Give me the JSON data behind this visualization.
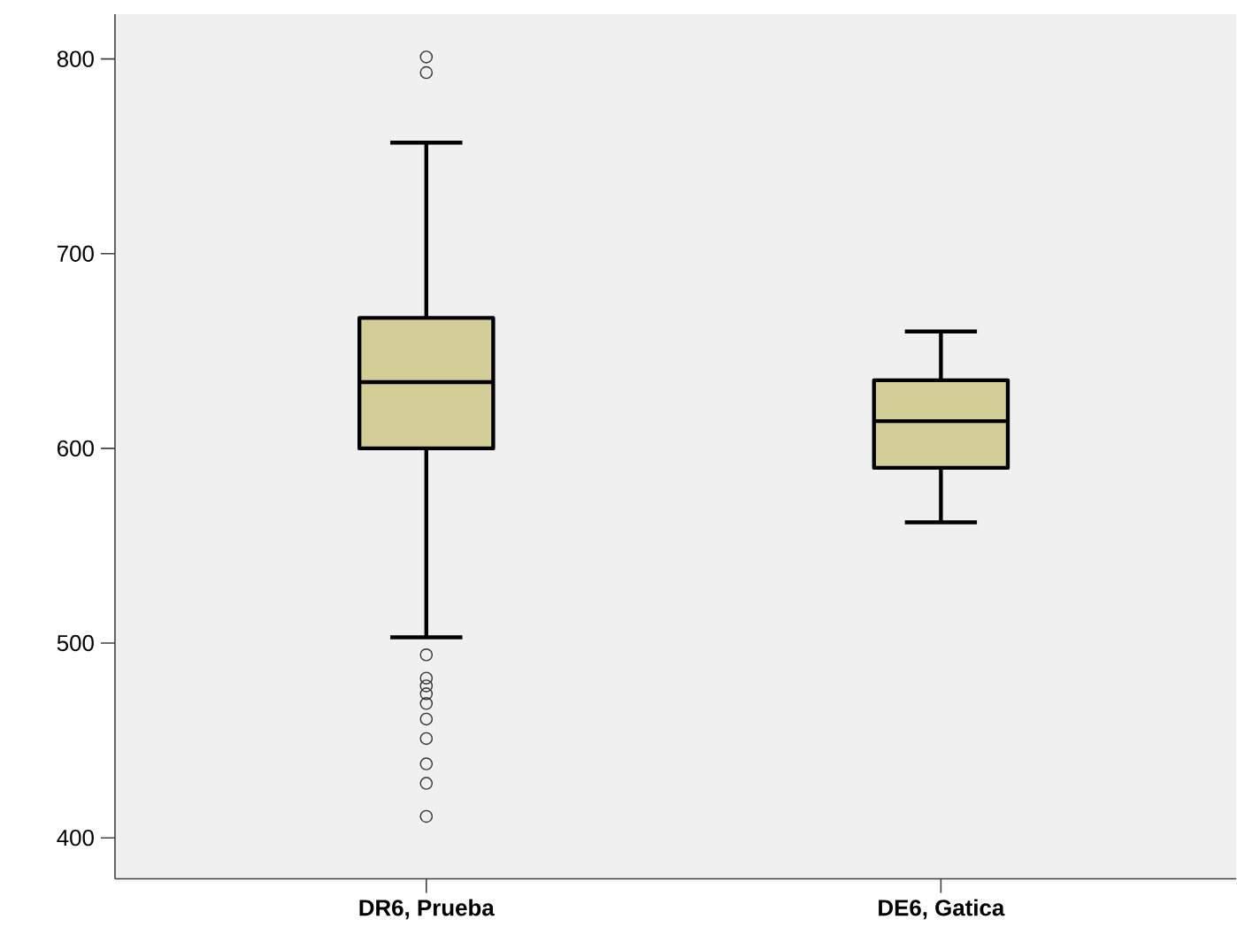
{
  "chart_data": {
    "type": "box",
    "categories": [
      "DR6, Prueba",
      "DE6, Gatica"
    ],
    "color": "#d3ce98",
    "boxes": [
      {
        "low": 503,
        "q1": 600,
        "median": 634,
        "q3": 667,
        "high": 757,
        "outliers": [
          801,
          793,
          494,
          482,
          478,
          474,
          469,
          461,
          451,
          438,
          428,
          411
        ]
      },
      {
        "low": 562,
        "q1": 590,
        "median": 614,
        "q3": 635,
        "high": 660
      }
    ],
    "ylim": [
      379,
      823
    ],
    "yticks": [
      400,
      500,
      600,
      700,
      800
    ]
  }
}
